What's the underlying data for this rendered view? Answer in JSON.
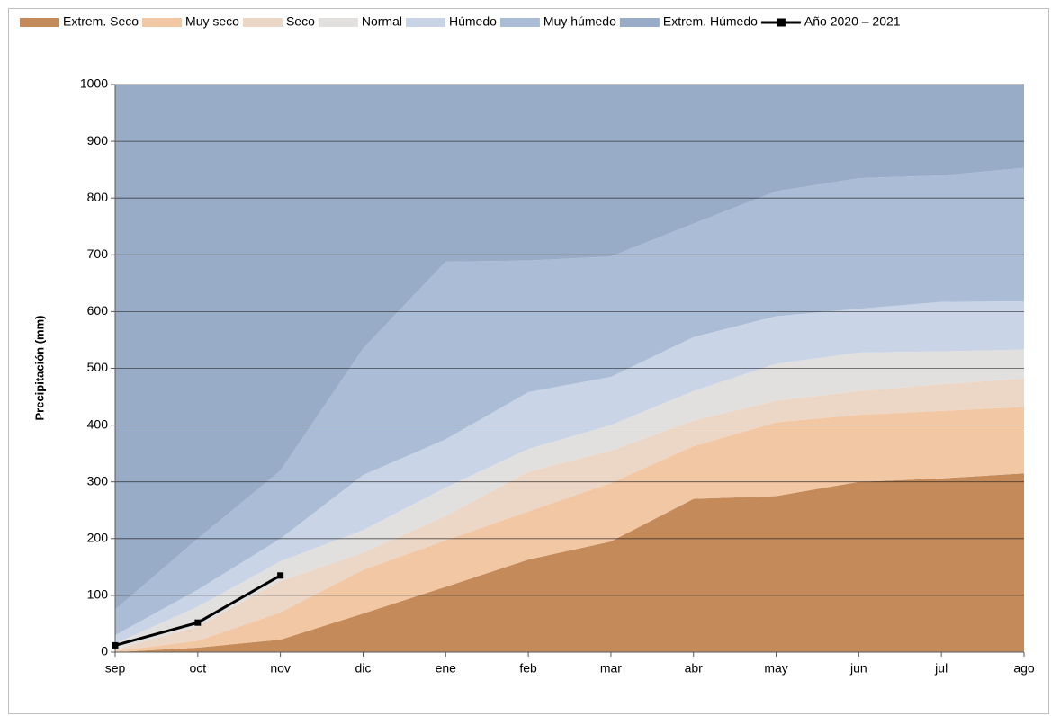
{
  "chart_data": {
    "type": "stacked_area",
    "ylabel": "Precipitación (mm)",
    "categories": [
      "sep",
      "oct",
      "nov",
      "dic",
      "ene",
      "feb",
      "mar",
      "abr",
      "may",
      "jun",
      "jul",
      "ago"
    ],
    "ylim": [
      0,
      1000
    ],
    "yticks": [
      0,
      100,
      200,
      300,
      400,
      500,
      600,
      700,
      800,
      900,
      1000
    ],
    "grid": true,
    "legend": "top",
    "series": [
      {
        "name": "Extrem. Seco",
        "color": "#c48a5a",
        "values": [
          0,
          8,
          22,
          68,
          115,
          163,
          195,
          270,
          275,
          300,
          306,
          315
        ]
      },
      {
        "name": "Muy seco",
        "color": "#f2c7a4",
        "values": [
          2,
          12,
          48,
          77,
          82,
          85,
          103,
          93,
          130,
          118,
          119,
          117
        ]
      },
      {
        "name": "Seco",
        "color": "#ecd6c6",
        "values": [
          3,
          25,
          55,
          30,
          43,
          70,
          57,
          45,
          38,
          42,
          47,
          50
        ]
      },
      {
        "name": "Normal",
        "color": "#e2dfdf",
        "values": [
          10,
          35,
          35,
          40,
          50,
          40,
          45,
          52,
          65,
          68,
          58,
          51
        ]
      },
      {
        "name": "Húmedo",
        "color": "#c9d5e6",
        "values": [
          15,
          30,
          40,
          97,
          85,
          100,
          85,
          95,
          84,
          77,
          87,
          85
        ]
      },
      {
        "name": "Muy húmedo",
        "color": "#aabcd6",
        "values": [
          45,
          90,
          120,
          223,
          313,
          232,
          212,
          200,
          220,
          230,
          223,
          235
        ]
      },
      {
        "name": "Extrem. Húmedo",
        "color": "#98abc7",
        "values": [
          925,
          800,
          680,
          465,
          312,
          310,
          303,
          245,
          188,
          165,
          160,
          147
        ]
      },
      {
        "name": "Año 2020 – 2021",
        "color": "#000000",
        "kind": "line",
        "values": [
          12,
          52,
          135,
          null,
          null,
          null,
          null,
          null,
          null,
          null,
          null,
          null
        ]
      }
    ]
  }
}
